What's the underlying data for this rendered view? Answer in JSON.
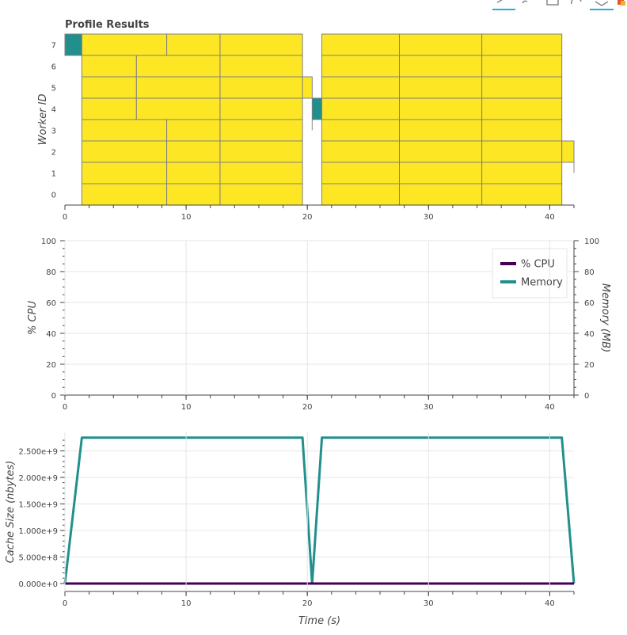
{
  "chart_data": [
    {
      "type": "gantt",
      "title": "Profile Results",
      "ylabel": "Worker ID",
      "xlim": [
        0,
        42
      ],
      "ylim": [
        -0.5,
        7.5
      ],
      "x_ticks": [
        0,
        10,
        20,
        30,
        40
      ],
      "y_ticks": [
        0,
        1,
        2,
        3,
        4,
        5,
        6,
        7
      ],
      "colors": {
        "task": "#fde725",
        "cache_task": "#21908d",
        "outline": "#808080"
      },
      "tasks": [
        {
          "worker": 7,
          "start": 0.0,
          "end": 1.4,
          "kind": "cache_task"
        },
        {
          "worker": 7,
          "start": 1.4,
          "end": 8.4,
          "kind": "task"
        },
        {
          "worker": 7,
          "start": 8.4,
          "end": 12.8,
          "kind": "task"
        },
        {
          "worker": 7,
          "start": 12.8,
          "end": 19.6,
          "kind": "task"
        },
        {
          "worker": 7,
          "start": 21.2,
          "end": 27.6,
          "kind": "task"
        },
        {
          "worker": 7,
          "start": 27.6,
          "end": 34.4,
          "kind": "task"
        },
        {
          "worker": 7,
          "start": 34.4,
          "end": 41.0,
          "kind": "task"
        },
        {
          "worker": 6,
          "start": 1.4,
          "end": 5.9,
          "kind": "task"
        },
        {
          "worker": 6,
          "start": 5.9,
          "end": 12.8,
          "kind": "task"
        },
        {
          "worker": 6,
          "start": 12.8,
          "end": 19.6,
          "kind": "task"
        },
        {
          "worker": 6,
          "start": 21.2,
          "end": 27.6,
          "kind": "task"
        },
        {
          "worker": 6,
          "start": 27.6,
          "end": 34.4,
          "kind": "task"
        },
        {
          "worker": 6,
          "start": 34.4,
          "end": 41.0,
          "kind": "task"
        },
        {
          "worker": 5,
          "start": 1.4,
          "end": 5.9,
          "kind": "task"
        },
        {
          "worker": 5,
          "start": 5.9,
          "end": 12.8,
          "kind": "task"
        },
        {
          "worker": 5,
          "start": 12.8,
          "end": 19.6,
          "kind": "task"
        },
        {
          "worker": 5,
          "start": 19.6,
          "end": 20.4,
          "kind": "task"
        },
        {
          "worker": 5,
          "start": 21.2,
          "end": 27.6,
          "kind": "task"
        },
        {
          "worker": 5,
          "start": 27.6,
          "end": 34.4,
          "kind": "task"
        },
        {
          "worker": 5,
          "start": 34.4,
          "end": 41.0,
          "kind": "task"
        },
        {
          "worker": 4,
          "start": 1.4,
          "end": 5.9,
          "kind": "task"
        },
        {
          "worker": 4,
          "start": 5.9,
          "end": 12.8,
          "kind": "task"
        },
        {
          "worker": 4,
          "start": 12.8,
          "end": 19.6,
          "kind": "task"
        },
        {
          "worker": 4,
          "start": 20.4,
          "end": 21.2,
          "kind": "cache_task"
        },
        {
          "worker": 4,
          "start": 21.2,
          "end": 27.6,
          "kind": "task"
        },
        {
          "worker": 4,
          "start": 27.6,
          "end": 34.4,
          "kind": "task"
        },
        {
          "worker": 4,
          "start": 34.4,
          "end": 41.0,
          "kind": "task"
        },
        {
          "worker": 3,
          "start": 1.4,
          "end": 8.4,
          "kind": "task"
        },
        {
          "worker": 3,
          "start": 8.4,
          "end": 12.8,
          "kind": "task"
        },
        {
          "worker": 3,
          "start": 12.8,
          "end": 19.6,
          "kind": "task"
        },
        {
          "worker": 3,
          "start": 21.2,
          "end": 27.6,
          "kind": "task"
        },
        {
          "worker": 3,
          "start": 27.6,
          "end": 34.4,
          "kind": "task"
        },
        {
          "worker": 3,
          "start": 34.4,
          "end": 41.0,
          "kind": "task"
        },
        {
          "worker": 2,
          "start": 1.4,
          "end": 8.4,
          "kind": "task"
        },
        {
          "worker": 2,
          "start": 8.4,
          "end": 12.8,
          "kind": "task"
        },
        {
          "worker": 2,
          "start": 12.8,
          "end": 19.6,
          "kind": "task"
        },
        {
          "worker": 2,
          "start": 21.2,
          "end": 27.6,
          "kind": "task"
        },
        {
          "worker": 2,
          "start": 27.6,
          "end": 34.4,
          "kind": "task"
        },
        {
          "worker": 2,
          "start": 34.4,
          "end": 41.0,
          "kind": "task"
        },
        {
          "worker": 2,
          "start": 41.0,
          "end": 42.0,
          "kind": "task"
        },
        {
          "worker": 1,
          "start": 1.4,
          "end": 8.4,
          "kind": "task"
        },
        {
          "worker": 1,
          "start": 8.4,
          "end": 12.8,
          "kind": "task"
        },
        {
          "worker": 1,
          "start": 12.8,
          "end": 19.6,
          "kind": "task"
        },
        {
          "worker": 1,
          "start": 21.2,
          "end": 27.6,
          "kind": "task"
        },
        {
          "worker": 1,
          "start": 27.6,
          "end": 34.4,
          "kind": "task"
        },
        {
          "worker": 1,
          "start": 34.4,
          "end": 41.0,
          "kind": "task"
        },
        {
          "worker": 0,
          "start": 1.4,
          "end": 8.4,
          "kind": "task"
        },
        {
          "worker": 0,
          "start": 8.4,
          "end": 12.8,
          "kind": "task"
        },
        {
          "worker": 0,
          "start": 12.8,
          "end": 19.6,
          "kind": "task"
        },
        {
          "worker": 0,
          "start": 21.2,
          "end": 27.6,
          "kind": "task"
        },
        {
          "worker": 0,
          "start": 27.6,
          "end": 34.4,
          "kind": "task"
        },
        {
          "worker": 0,
          "start": 34.4,
          "end": 41.0,
          "kind": "task"
        }
      ]
    },
    {
      "type": "line",
      "ylabel": "% CPU",
      "y2label": "Memory (MB)",
      "xlim": [
        0,
        42
      ],
      "ylim": [
        0,
        100
      ],
      "y2lim": [
        0,
        100
      ],
      "x_ticks": [
        0,
        10,
        20,
        30,
        40
      ],
      "y_ticks": [
        0,
        20,
        40,
        60,
        80,
        100
      ],
      "grid": true,
      "legend_position": "top-right",
      "series": [
        {
          "name": "% CPU",
          "color": "#440154",
          "x": [],
          "y": []
        },
        {
          "name": "Memory",
          "color": "#21908d",
          "x": [],
          "y": []
        }
      ]
    },
    {
      "type": "line",
      "xlabel": "Time (s)",
      "ylabel": "Cache Size (nbytes)",
      "xlim": [
        0,
        42
      ],
      "ylim": [
        -150000000.0,
        2850000000.0
      ],
      "x_ticks": [
        0,
        10,
        20,
        30,
        40
      ],
      "y_ticks": [
        0,
        500000000,
        1000000000,
        1500000000,
        2000000000,
        2500000000
      ],
      "y_tick_labels": [
        "0.000e+0",
        "5.000e+8",
        "1.000e+9",
        "1.500e+9",
        "2.000e+9",
        "2.500e+9"
      ],
      "grid": true,
      "series": [
        {
          "color": "#21908d",
          "x": [
            0,
            1.4,
            19.6,
            20.4,
            21.2,
            41.0,
            42.0
          ],
          "y": [
            0,
            2750000000,
            2750000000,
            0,
            2750000000,
            2750000000,
            0
          ]
        },
        {
          "color": "#440154",
          "x": [
            0,
            42.0
          ],
          "y": [
            0,
            0
          ]
        }
      ]
    }
  ]
}
